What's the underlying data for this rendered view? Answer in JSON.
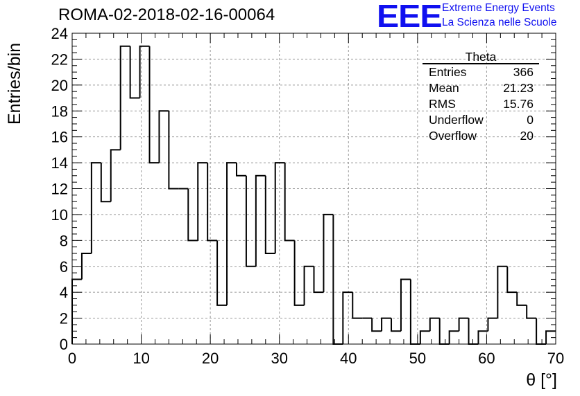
{
  "title": "ROMA-02-2018-02-16-00064",
  "branding": {
    "logo": "EEE",
    "line1": "Extreme Energy Events",
    "line2": "La Scienza nelle Scuole",
    "color": "#1010f0"
  },
  "stats_box": {
    "name": "Theta",
    "rows": [
      {
        "label": "Entries",
        "value": "366"
      },
      {
        "label": "Mean",
        "value": "21.23"
      },
      {
        "label": "RMS",
        "value": "15.76"
      },
      {
        "label": "Underflow",
        "value": "0"
      },
      {
        "label": "Overflow",
        "value": "20"
      }
    ]
  },
  "chart_data": {
    "type": "bar",
    "style": "step-histogram",
    "title": "ROMA-02-2018-02-16-00064",
    "xlabel": "θ [°]",
    "ylabel": "Entries/bin",
    "xlim": [
      0,
      70
    ],
    "ylim": [
      0,
      24
    ],
    "bin_width": 1.4,
    "x_ticks": [
      "0",
      "10",
      "20",
      "30",
      "40",
      "50",
      "60",
      "70"
    ],
    "y_ticks": [
      "0",
      "2",
      "4",
      "6",
      "8",
      "10",
      "12",
      "14",
      "16",
      "18",
      "20",
      "22",
      "24"
    ],
    "grid": true,
    "values": [
      5,
      7,
      14,
      11,
      15,
      23,
      19,
      23,
      14,
      18,
      12,
      12,
      8,
      14,
      8,
      3,
      14,
      13,
      6,
      13,
      7,
      14,
      8,
      3,
      6,
      4,
      10,
      0,
      4,
      2,
      2,
      1,
      2,
      1,
      5,
      0,
      1,
      2,
      0,
      1,
      2,
      0,
      1,
      2,
      6,
      4,
      3,
      2,
      0,
      1
    ],
    "line_color": "#000000"
  }
}
